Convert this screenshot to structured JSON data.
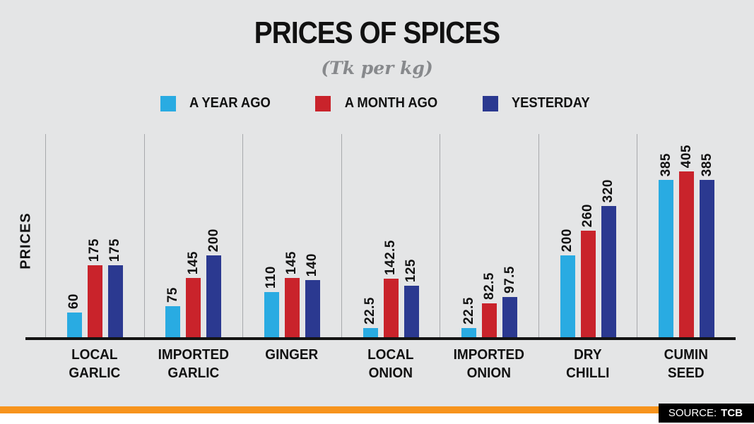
{
  "source": {
    "label": "SOURCE:",
    "value": "TCB"
  },
  "chart_data": {
    "type": "bar",
    "title": "PRICES OF SPICES",
    "subtitle": "(Tk per kg)",
    "ylabel": "PRICES",
    "xlabel": "",
    "ylim": [
      0,
      420
    ],
    "grid": false,
    "group_separators": true,
    "legend_position": "top",
    "value_labels_rotated": true,
    "categories": [
      "LOCAL GARLIC",
      "IMPORTED GARLIC",
      "GINGER",
      "LOCAL ONION",
      "IMPORTED ONION",
      "DRY CHILLI",
      "CUMIN SEED"
    ],
    "series": [
      {
        "name": "A YEAR AGO",
        "color": "#29abe2",
        "values": [
          60,
          75,
          110,
          22.5,
          22.5,
          200,
          385
        ]
      },
      {
        "name": "A MONTH AGO",
        "color": "#c9232b",
        "values": [
          175,
          145,
          145,
          142.5,
          82.5,
          260,
          405
        ]
      },
      {
        "name": "YESTERDAY",
        "color": "#2b3990",
        "values": [
          175,
          200,
          140,
          125,
          97.5,
          320,
          385
        ]
      }
    ]
  }
}
